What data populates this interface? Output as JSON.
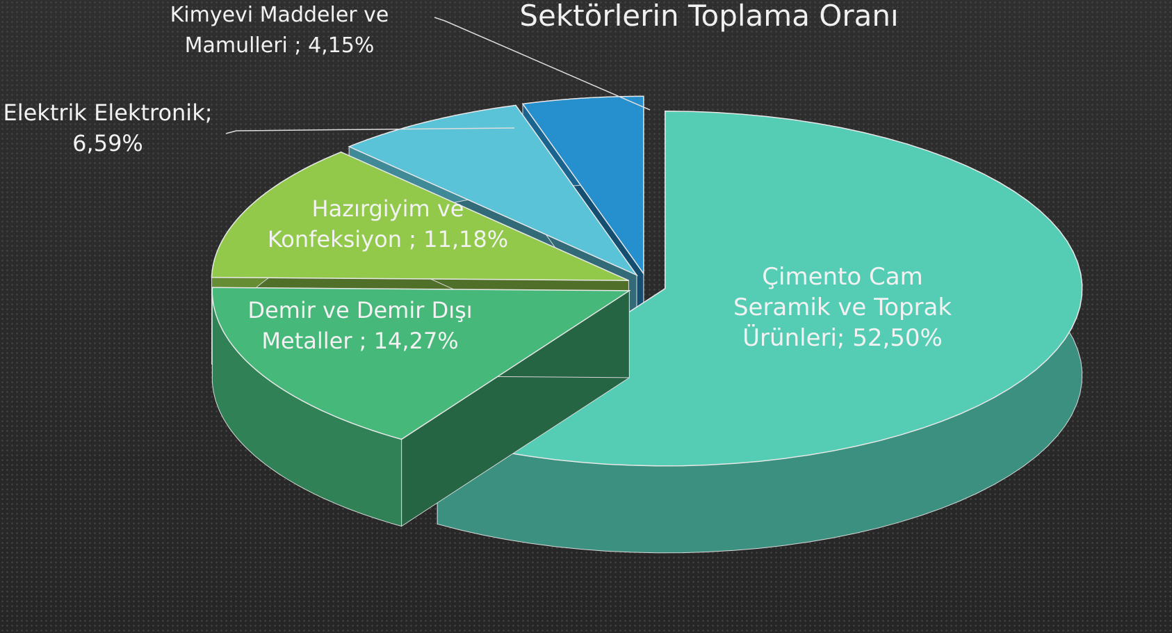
{
  "chart_data": {
    "type": "pie",
    "title": "Sektörlerin Toplama Oranı",
    "categories": [
      "Çimento Cam Seramik ve Toprak Ürünleri;",
      "Demir ve Demir Dışı Metaller ;",
      "Hazırgiyim ve Konfeksiyon ;",
      "Elektrik Elektronik;",
      "Kimyevi Maddeler ve Mamulleri  ;"
    ],
    "values": [
      52.5,
      14.27,
      11.18,
      6.59,
      4.15
    ],
    "value_labels": [
      "52,50%",
      "14,27%",
      "11,18%",
      "6,59%",
      "4,15%"
    ],
    "colors": [
      "#55cdb5",
      "#45b87a",
      "#92c94a",
      "#5bc3d8",
      "#2590cd"
    ]
  }
}
